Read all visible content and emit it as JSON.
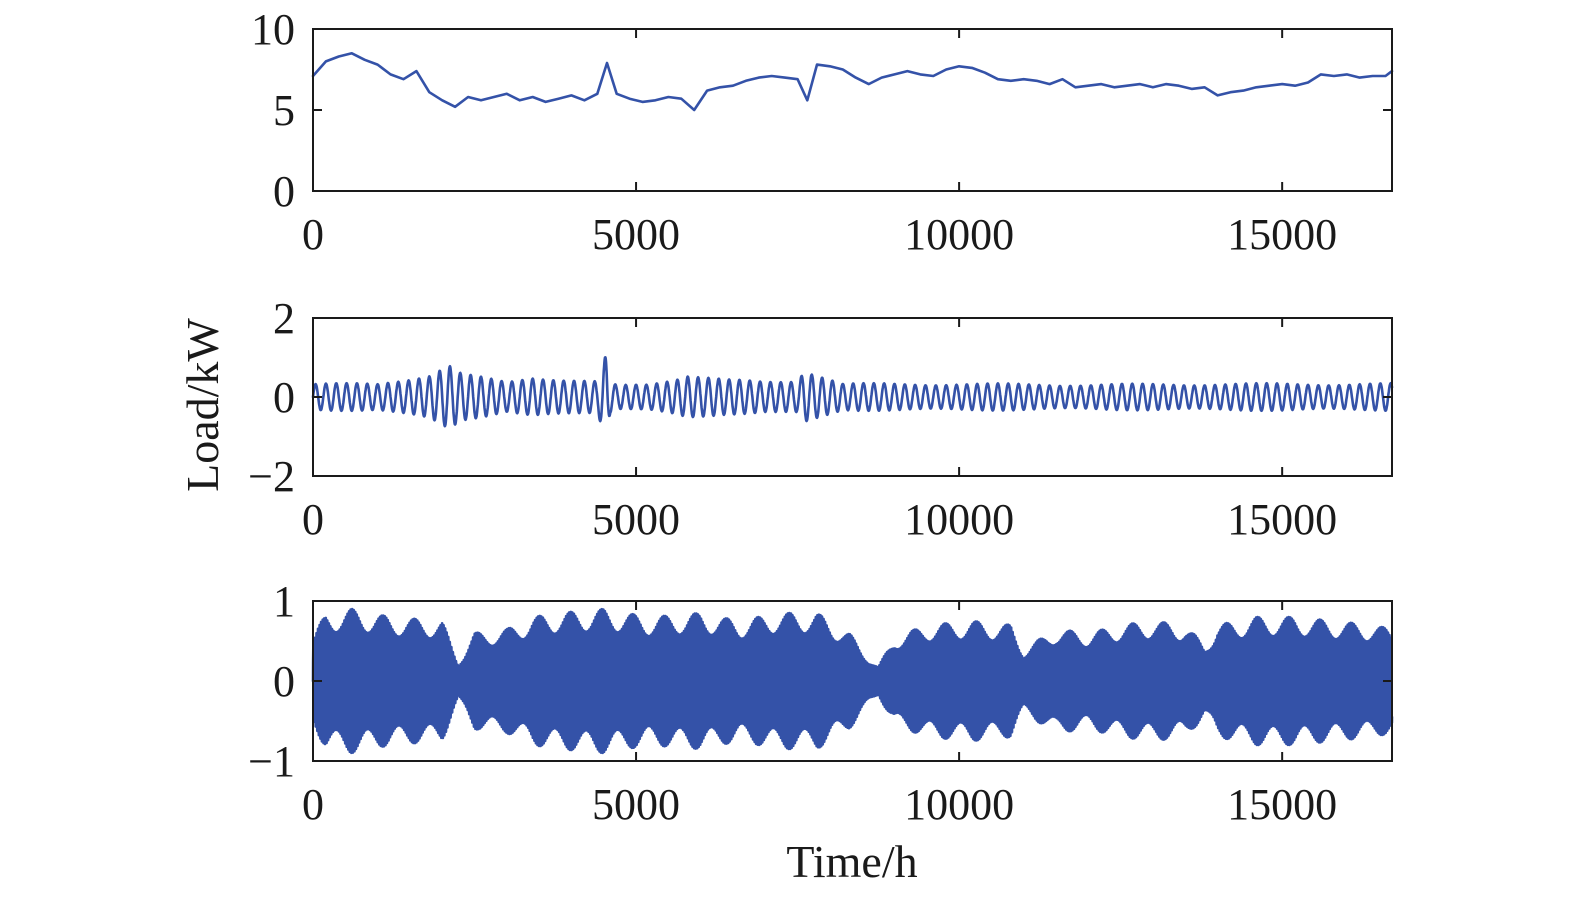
{
  "chart_data": {
    "type": "line",
    "shared_ylabel": "Load/kW",
    "shared_xlabel": "Time/h",
    "grid": false,
    "legend": "none",
    "line_color": "#3452a8",
    "panels": [
      {
        "type": "line",
        "xlim": [
          0,
          16700
        ],
        "ylim": [
          0,
          10
        ],
        "xticks": [
          0,
          5000,
          10000,
          15000
        ],
        "xtick_labels": [
          "0",
          "5000",
          "10000",
          "15000"
        ],
        "yticks": [
          0,
          5,
          10
        ],
        "ytick_labels": [
          "0",
          "5",
          "10"
        ],
        "series": [
          {
            "x": [
              0,
              200,
              400,
              600,
              800,
              1000,
              1200,
              1400,
              1600,
              1800,
              2000,
              2200,
              2400,
              2600,
              2800,
              3000,
              3200,
              3400,
              3600,
              3800,
              4000,
              4200,
              4400,
              4550,
              4700,
              4900,
              5100,
              5300,
              5500,
              5700,
              5900,
              6100,
              6300,
              6500,
              6700,
              6900,
              7100,
              7300,
              7500,
              7650,
              7800,
              8000,
              8200,
              8400,
              8600,
              8800,
              9000,
              9200,
              9400,
              9600,
              9800,
              10000,
              10200,
              10400,
              10600,
              10800,
              11000,
              11200,
              11400,
              11600,
              11800,
              12000,
              12200,
              12400,
              12600,
              12800,
              13000,
              13200,
              13400,
              13600,
              13800,
              14000,
              14200,
              14400,
              14600,
              14800,
              15000,
              15200,
              15400,
              15600,
              15800,
              16000,
              16200,
              16400,
              16600,
              16700
            ],
            "values": [
              7.1,
              8.0,
              8.3,
              8.5,
              8.1,
              7.8,
              7.2,
              6.9,
              7.4,
              6.1,
              5.6,
              5.2,
              5.8,
              5.6,
              5.8,
              6.0,
              5.6,
              5.8,
              5.5,
              5.7,
              5.9,
              5.6,
              6.0,
              7.9,
              6.0,
              5.7,
              5.5,
              5.6,
              5.8,
              5.7,
              5.0,
              6.2,
              6.4,
              6.5,
              6.8,
              7.0,
              7.1,
              7.0,
              6.9,
              5.6,
              7.8,
              7.7,
              7.5,
              7.0,
              6.6,
              7.0,
              7.2,
              7.4,
              7.2,
              7.1,
              7.5,
              7.7,
              7.6,
              7.3,
              6.9,
              6.8,
              6.9,
              6.8,
              6.6,
              6.9,
              6.4,
              6.5,
              6.6,
              6.4,
              6.5,
              6.6,
              6.4,
              6.6,
              6.5,
              6.3,
              6.4,
              5.9,
              6.1,
              6.2,
              6.4,
              6.5,
              6.6,
              6.5,
              6.7,
              7.2,
              7.1,
              7.2,
              7.0,
              7.1,
              7.1,
              7.4
            ]
          }
        ]
      },
      {
        "type": "line",
        "xlim": [
          0,
          16700
        ],
        "ylim": [
          -2,
          2
        ],
        "xticks": [
          0,
          5000,
          10000,
          15000
        ],
        "xtick_labels": [
          "0",
          "5000",
          "10000",
          "15000"
        ],
        "yticks": [
          -2,
          0,
          2
        ],
        "ytick_labels": [
          "−2",
          "0",
          "2"
        ],
        "series": [
          {
            "signal": "oscillation",
            "x_start": 0,
            "x_end": 16700,
            "period": 160,
            "envelope_x": [
              0,
              1000,
              1800,
              2100,
              2300,
              3000,
              3400,
              4000,
              4400,
              4540,
              4600,
              4700,
              5200,
              5600,
              5800,
              6400,
              7000,
              7500,
              7600,
              8200,
              10000,
              12000,
              14000,
              16700
            ],
            "envelope_amp": [
              0.35,
              0.35,
              0.6,
              0.85,
              0.6,
              0.4,
              0.55,
              0.45,
              0.4,
              1.1,
              0.4,
              0.3,
              0.35,
              0.5,
              0.6,
              0.45,
              0.4,
              0.45,
              0.75,
              0.35,
              0.35,
              0.33,
              0.35,
              0.35
            ]
          }
        ]
      },
      {
        "type": "line",
        "xlim": [
          0,
          16700
        ],
        "ylim": [
          -1,
          1
        ],
        "xticks": [
          0,
          5000,
          10000,
          15000
        ],
        "xtick_labels": [
          "0",
          "5000",
          "10000",
          "15000"
        ],
        "yticks": [
          -1,
          0,
          1
        ],
        "ytick_labels": [
          "−1",
          "0",
          "1"
        ],
        "series": [
          {
            "signal": "dense-oscillation",
            "x_start": 0,
            "x_end": 16700,
            "period": 24,
            "envelope_x": [
              0,
              200,
              600,
              1200,
              2000,
              2250,
              2500,
              3000,
              3400,
              3800,
              4500,
              5200,
              6000,
              6600,
              7200,
              7800,
              8300,
              8600,
              8750,
              9000,
              9500,
              10200,
              10800,
              11000,
              11500,
              12000,
              12500,
              13000,
              13500,
              13800,
              14000,
              14600,
              15200,
              15800,
              16400,
              16700
            ],
            "envelope_amp": [
              0.55,
              0.85,
              0.9,
              0.8,
              0.75,
              0.25,
              0.6,
              0.65,
              0.8,
              0.85,
              0.9,
              0.8,
              0.85,
              0.75,
              0.85,
              0.85,
              0.6,
              0.3,
              0.18,
              0.55,
              0.7,
              0.75,
              0.7,
              0.4,
              0.65,
              0.6,
              0.7,
              0.75,
              0.7,
              0.45,
              0.7,
              0.8,
              0.8,
              0.75,
              0.7,
              0.65
            ]
          }
        ]
      }
    ]
  }
}
